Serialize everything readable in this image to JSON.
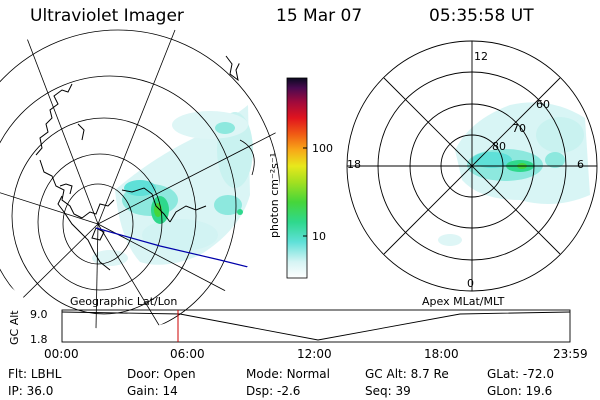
{
  "header": {
    "instrument": "Ultraviolet Imager",
    "date": "15 Mar 07",
    "time": "05:35:58 UT"
  },
  "left_panel": {
    "caption": "Geographic Lat/Lon"
  },
  "right_panel": {
    "caption": "Apex MLat/MLT",
    "mlt_labels": [
      "12",
      "18",
      "6",
      "0"
    ],
    "mlat_labels": [
      "60",
      "70",
      "80"
    ]
  },
  "colorbar": {
    "unit_label": "photon cm⁻²s⁻¹",
    "ticks": [
      "100",
      "10"
    ]
  },
  "timeline": {
    "axis_label": "GC Alt",
    "y_ticks": [
      "9.0",
      "1.8"
    ],
    "x_ticks": [
      "00:00",
      "06:00",
      "12:00",
      "18:00",
      "23:59"
    ],
    "current_time_marker": "05:35:58"
  },
  "info": [
    {
      "key": "Flt:",
      "value": "LBHL"
    },
    {
      "key": "Door:",
      "value": "Open"
    },
    {
      "key": "Mode:",
      "value": "Normal"
    },
    {
      "key": "GC Alt:",
      "value": "8.7 Re"
    },
    {
      "key": "GLat:",
      "value": "-72.0"
    },
    {
      "key": "IP:",
      "value": "36.0"
    },
    {
      "key": "Gain:",
      "value": "14"
    },
    {
      "key": "Dsp:",
      "value": "-2.6"
    },
    {
      "key": "Seq:",
      "value": "39"
    },
    {
      "key": "GLon:",
      "value": "19.6"
    }
  ],
  "colors": {
    "trajectory_line": "#0000aa",
    "time_marker": "#cc0000"
  }
}
